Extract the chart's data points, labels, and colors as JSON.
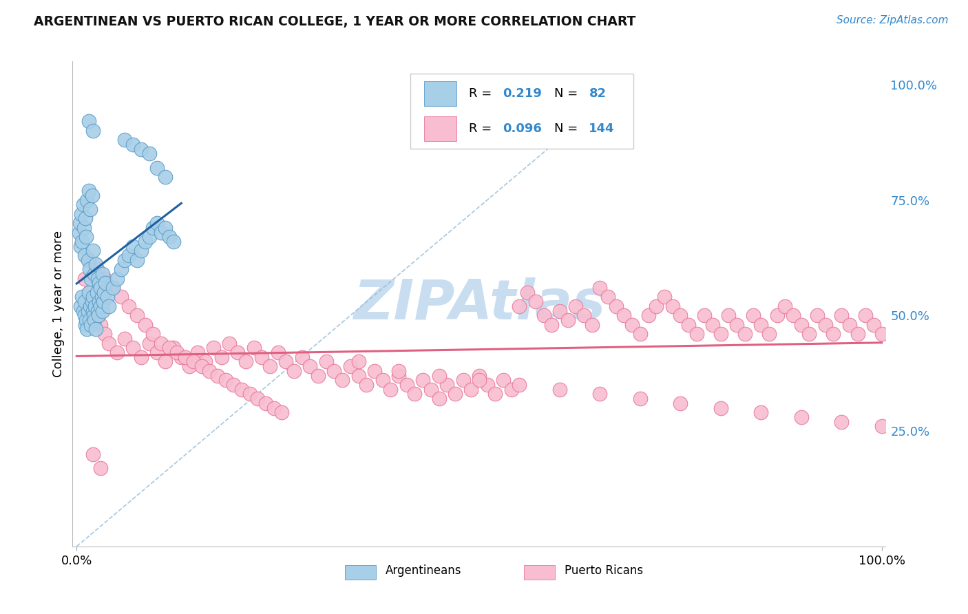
{
  "title": "ARGENTINEAN VS PUERTO RICAN COLLEGE, 1 YEAR OR MORE CORRELATION CHART",
  "source": "Source: ZipAtlas.com",
  "ylabel": "College, 1 year or more",
  "blue_color": "#a8cfe8",
  "blue_edge_color": "#5b9dc8",
  "pink_color": "#f8bdd0",
  "pink_edge_color": "#e87898",
  "blue_line_color": "#2060a0",
  "pink_line_color": "#e06080",
  "diag_color": "#90b8d8",
  "right_tick_color": "#3388cc",
  "grid_color": "#cccccc",
  "watermark_color": "#c8ddf0",
  "watermark_text": "ZIPAtlas",
  "r_value_color": "#3388cc",
  "n_value_color": "#3388cc",
  "blue_scatter_x": [
    0.005,
    0.007,
    0.008,
    0.01,
    0.01,
    0.011,
    0.012,
    0.013,
    0.014,
    0.015,
    0.016,
    0.017,
    0.018,
    0.019,
    0.02,
    0.02,
    0.021,
    0.022,
    0.023,
    0.024,
    0.025,
    0.026,
    0.027,
    0.028,
    0.03,
    0.031,
    0.032,
    0.033,
    0.035,
    0.036,
    0.003,
    0.004,
    0.005,
    0.006,
    0.007,
    0.008,
    0.009,
    0.01,
    0.011,
    0.012,
    0.013,
    0.014,
    0.015,
    0.016,
    0.017,
    0.018,
    0.019,
    0.02,
    0.022,
    0.024,
    0.026,
    0.028,
    0.03,
    0.032,
    0.034,
    0.036,
    0.038,
    0.04,
    0.045,
    0.05,
    0.055,
    0.06,
    0.065,
    0.07,
    0.075,
    0.08,
    0.085,
    0.09,
    0.095,
    0.1,
    0.105,
    0.11,
    0.115,
    0.12,
    0.06,
    0.07,
    0.08,
    0.09,
    0.1,
    0.11,
    0.015,
    0.02
  ],
  "blue_scatter_y": [
    0.52,
    0.54,
    0.51,
    0.5,
    0.53,
    0.48,
    0.49,
    0.47,
    0.51,
    0.55,
    0.49,
    0.52,
    0.48,
    0.53,
    0.51,
    0.54,
    0.5,
    0.49,
    0.52,
    0.47,
    0.55,
    0.51,
    0.5,
    0.53,
    0.52,
    0.54,
    0.51,
    0.53,
    0.55,
    0.57,
    0.68,
    0.7,
    0.65,
    0.72,
    0.66,
    0.74,
    0.69,
    0.63,
    0.71,
    0.67,
    0.75,
    0.62,
    0.77,
    0.6,
    0.73,
    0.58,
    0.76,
    0.64,
    0.59,
    0.61,
    0.58,
    0.57,
    0.56,
    0.59,
    0.55,
    0.57,
    0.54,
    0.52,
    0.56,
    0.58,
    0.6,
    0.62,
    0.63,
    0.65,
    0.62,
    0.64,
    0.66,
    0.67,
    0.69,
    0.7,
    0.68,
    0.69,
    0.67,
    0.66,
    0.88,
    0.87,
    0.86,
    0.85,
    0.82,
    0.8,
    0.92,
    0.9
  ],
  "pink_scatter_x": [
    0.01,
    0.015,
    0.02,
    0.025,
    0.03,
    0.035,
    0.04,
    0.05,
    0.06,
    0.07,
    0.08,
    0.09,
    0.1,
    0.11,
    0.12,
    0.13,
    0.14,
    0.15,
    0.16,
    0.17,
    0.18,
    0.19,
    0.2,
    0.21,
    0.22,
    0.23,
    0.24,
    0.25,
    0.26,
    0.27,
    0.28,
    0.29,
    0.3,
    0.31,
    0.32,
    0.33,
    0.34,
    0.35,
    0.36,
    0.37,
    0.38,
    0.39,
    0.4,
    0.41,
    0.42,
    0.43,
    0.44,
    0.45,
    0.46,
    0.47,
    0.48,
    0.49,
    0.5,
    0.51,
    0.52,
    0.53,
    0.54,
    0.55,
    0.56,
    0.57,
    0.58,
    0.59,
    0.6,
    0.61,
    0.62,
    0.63,
    0.64,
    0.65,
    0.66,
    0.67,
    0.68,
    0.69,
    0.7,
    0.71,
    0.72,
    0.73,
    0.74,
    0.75,
    0.76,
    0.77,
    0.78,
    0.79,
    0.8,
    0.81,
    0.82,
    0.83,
    0.84,
    0.85,
    0.86,
    0.87,
    0.88,
    0.89,
    0.9,
    0.91,
    0.92,
    0.93,
    0.94,
    0.95,
    0.96,
    0.97,
    0.98,
    0.99,
    1.0,
    0.015,
    0.025,
    0.035,
    0.045,
    0.055,
    0.065,
    0.075,
    0.085,
    0.095,
    0.105,
    0.115,
    0.125,
    0.135,
    0.145,
    0.155,
    0.165,
    0.175,
    0.185,
    0.195,
    0.205,
    0.215,
    0.225,
    0.235,
    0.245,
    0.255,
    0.35,
    0.4,
    0.45,
    0.5,
    0.55,
    0.6,
    0.65,
    0.7,
    0.75,
    0.8,
    0.85,
    0.9,
    0.95,
    1.0,
    0.02,
    0.03
  ],
  "pink_scatter_y": [
    0.58,
    0.55,
    0.52,
    0.5,
    0.48,
    0.46,
    0.44,
    0.42,
    0.45,
    0.43,
    0.41,
    0.44,
    0.42,
    0.4,
    0.43,
    0.41,
    0.39,
    0.42,
    0.4,
    0.43,
    0.41,
    0.44,
    0.42,
    0.4,
    0.43,
    0.41,
    0.39,
    0.42,
    0.4,
    0.38,
    0.41,
    0.39,
    0.37,
    0.4,
    0.38,
    0.36,
    0.39,
    0.37,
    0.35,
    0.38,
    0.36,
    0.34,
    0.37,
    0.35,
    0.33,
    0.36,
    0.34,
    0.32,
    0.35,
    0.33,
    0.36,
    0.34,
    0.37,
    0.35,
    0.33,
    0.36,
    0.34,
    0.52,
    0.55,
    0.53,
    0.5,
    0.48,
    0.51,
    0.49,
    0.52,
    0.5,
    0.48,
    0.56,
    0.54,
    0.52,
    0.5,
    0.48,
    0.46,
    0.5,
    0.52,
    0.54,
    0.52,
    0.5,
    0.48,
    0.46,
    0.5,
    0.48,
    0.46,
    0.5,
    0.48,
    0.46,
    0.5,
    0.48,
    0.46,
    0.5,
    0.52,
    0.5,
    0.48,
    0.46,
    0.5,
    0.48,
    0.46,
    0.5,
    0.48,
    0.46,
    0.5,
    0.48,
    0.46,
    0.62,
    0.6,
    0.58,
    0.56,
    0.54,
    0.52,
    0.5,
    0.48,
    0.46,
    0.44,
    0.43,
    0.42,
    0.41,
    0.4,
    0.39,
    0.38,
    0.37,
    0.36,
    0.35,
    0.34,
    0.33,
    0.32,
    0.31,
    0.3,
    0.29,
    0.4,
    0.38,
    0.37,
    0.36,
    0.35,
    0.34,
    0.33,
    0.32,
    0.31,
    0.3,
    0.29,
    0.28,
    0.27,
    0.26,
    0.2,
    0.17
  ]
}
